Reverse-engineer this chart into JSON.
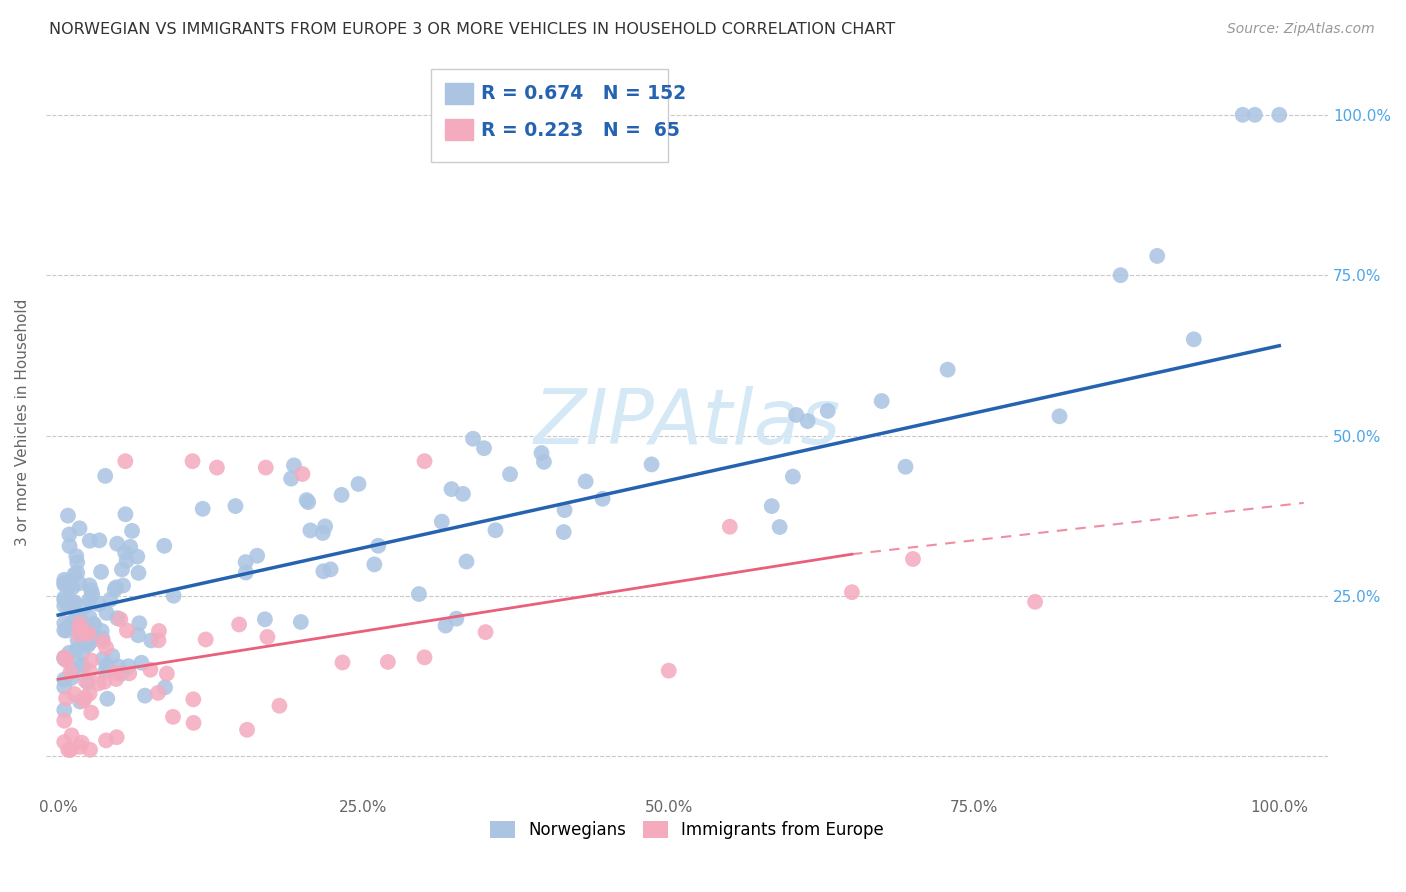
{
  "title": "NORWEGIAN VS IMMIGRANTS FROM EUROPE 3 OR MORE VEHICLES IN HOUSEHOLD CORRELATION CHART",
  "source": "Source: ZipAtlas.com",
  "ylabel": "3 or more Vehicles in Household",
  "norwegian_color": "#aac4e2",
  "immigrant_color": "#f4abbe",
  "norwegian_line_color": "#2563b0",
  "immigrant_line_color": "#e8607a",
  "norwegian_R": "0.674",
  "norwegian_N": "152",
  "immigrant_R": "0.223",
  "immigrant_N": " 65",
  "background_color": "#ffffff",
  "grid_color": "#c8c8c8",
  "watermark_color": "#d5e8f5",
  "legend_edge_color": "#cccccc",
  "right_tick_color": "#4da6e8",
  "title_fontsize": 11.5,
  "source_fontsize": 10,
  "axis_label_fontsize": 11,
  "legend_fontsize": 12.5,
  "rn_fontsize": 13.5
}
